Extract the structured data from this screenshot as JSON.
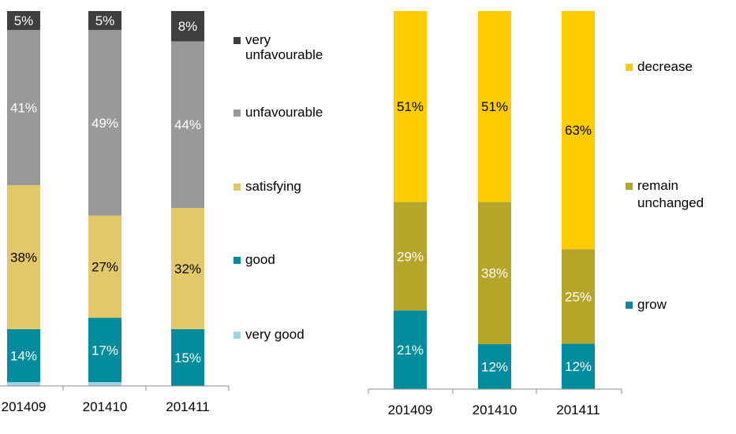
{
  "chart_data": [
    {
      "type": "bar",
      "stacked": true,
      "categories": [
        "201409",
        "201410",
        "201411"
      ],
      "series": [
        {
          "name": "very good",
          "values": [
            1,
            1,
            0
          ],
          "labels": [
            "",
            "",
            ""
          ],
          "color": "#9fd4e3",
          "label_color": "#ffffff"
        },
        {
          "name": "good",
          "values": [
            14,
            17,
            15
          ],
          "labels": [
            "14%",
            "17%",
            "15%"
          ],
          "color": "#008c9c",
          "label_color": "#ffffff"
        },
        {
          "name": "satisfying",
          "values": [
            38,
            27,
            32
          ],
          "labels": [
            "38%",
            "27%",
            "32%"
          ],
          "color": "#e3c86a",
          "label_color": "#000000"
        },
        {
          "name": "unfavourable",
          "values": [
            41,
            49,
            44
          ],
          "labels": [
            "41%",
            "49%",
            "44%"
          ],
          "color": "#999999",
          "label_color": "#ffffff"
        },
        {
          "name": "very unfavourable",
          "values": [
            5,
            5,
            8
          ],
          "labels": [
            "5%",
            "5%",
            "8%"
          ],
          "color": "#3f3f3f",
          "label_color": "#ffffff"
        }
      ],
      "legend": [
        "very unfavourable",
        "unfavourable",
        "satisfying",
        "good",
        "very good"
      ],
      "legend_placement": "right",
      "ylim": [
        0,
        100
      ],
      "grid": false
    },
    {
      "type": "bar",
      "stacked": true,
      "categories": [
        "201409",
        "201410",
        "201411"
      ],
      "series": [
        {
          "name": "grow",
          "values": [
            21,
            12,
            12
          ],
          "labels": [
            "21%",
            "12%",
            "12%"
          ],
          "color": "#008c9c",
          "label_color": "#ffffff"
        },
        {
          "name": "remain unchanged",
          "values": [
            29,
            38,
            25
          ],
          "labels": [
            "29%",
            "38%",
            "25%"
          ],
          "color": "#b5a62a",
          "label_color": "#ffffff"
        },
        {
          "name": "decrease",
          "values": [
            51,
            51,
            63
          ],
          "labels": [
            "51%",
            "51%",
            "63%"
          ],
          "color": "#ffcc00",
          "label_color": "#000000"
        }
      ],
      "legend": [
        "decrease",
        "remain unchanged",
        "grow"
      ],
      "legend_placement": "right",
      "ylim": [
        0,
        100
      ],
      "grid": false
    }
  ]
}
